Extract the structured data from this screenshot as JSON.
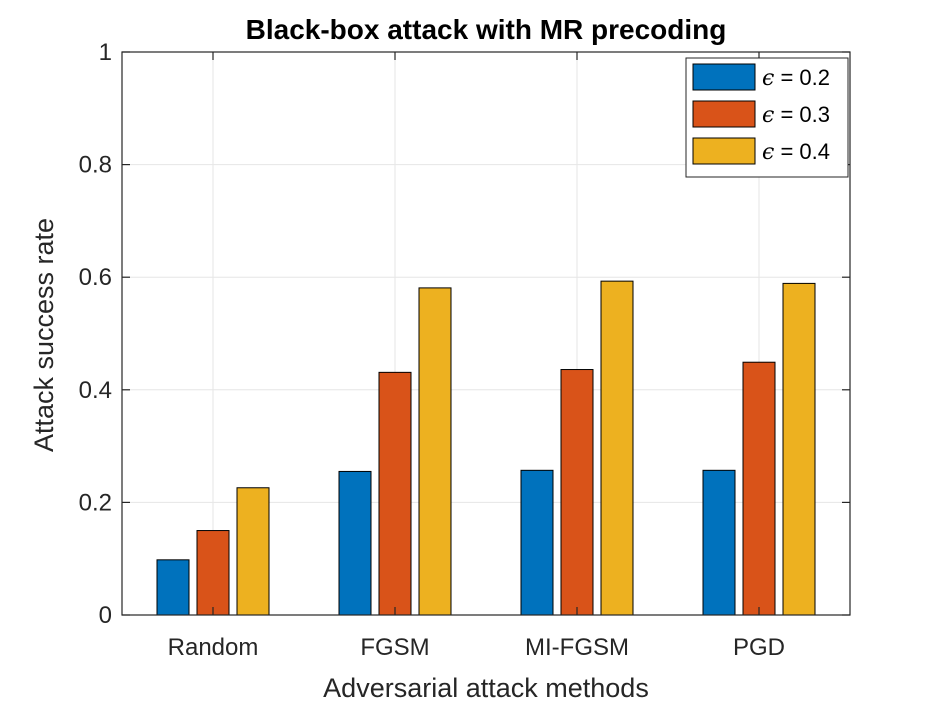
{
  "chart_data": {
    "type": "bar",
    "title": "Black-box attack with MR precoding",
    "xlabel": "Adversarial attack methods",
    "ylabel": "Attack success rate",
    "categories": [
      "Random",
      "FGSM",
      "MI-FGSM",
      "PGD"
    ],
    "ylim": [
      0,
      1
    ],
    "yticks": [
      0,
      0.2,
      0.4,
      0.6,
      0.8,
      1
    ],
    "ytick_labels": [
      "0",
      "0.2",
      "0.4",
      "0.6",
      "0.8",
      "1"
    ],
    "grid": true,
    "legend_position": "top-right",
    "series": [
      {
        "name": "ϵ = 0.2",
        "symbol": "ϵ",
        "value_text": " = 0.2",
        "color": "#0072BD",
        "values": [
          0.098,
          0.255,
          0.257,
          0.257
        ]
      },
      {
        "name": "ϵ = 0.3",
        "symbol": "ϵ",
        "value_text": " = 0.3",
        "color": "#D95319",
        "values": [
          0.15,
          0.431,
          0.436,
          0.449
        ]
      },
      {
        "name": "ϵ = 0.4",
        "symbol": "ϵ",
        "value_text": " = 0.4",
        "color": "#EDB120",
        "values": [
          0.226,
          0.581,
          0.593,
          0.589
        ]
      }
    ]
  }
}
